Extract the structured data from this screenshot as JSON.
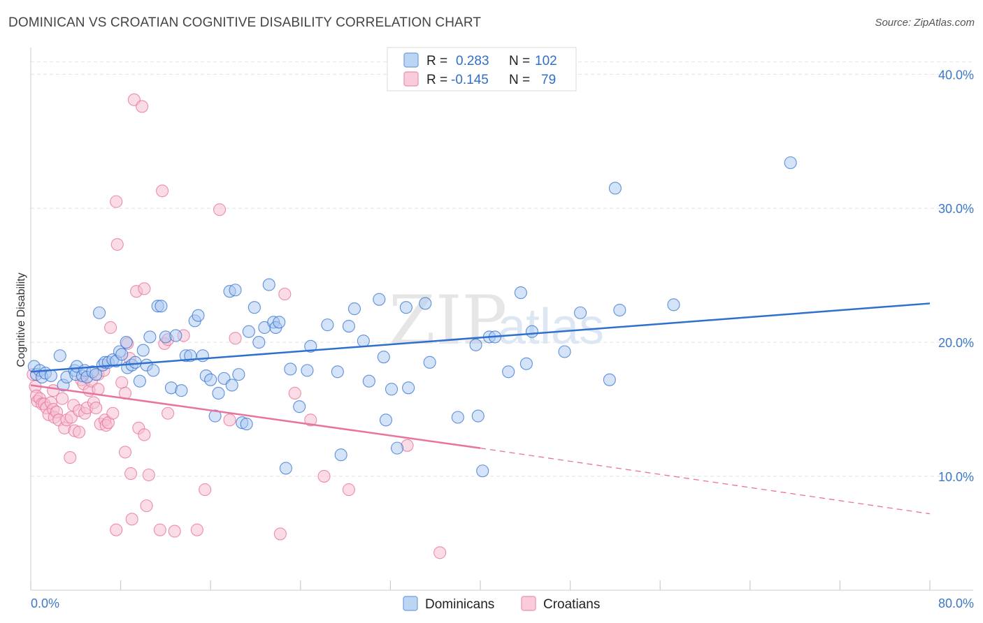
{
  "title": "DOMINICAN VS CROATIAN COGNITIVE DISABILITY CORRELATION CHART",
  "source": "Source: ZipAtlas.com",
  "watermark": {
    "zip": "ZIP",
    "atlas": "atlas"
  },
  "legend": {
    "dominicans": {
      "r_label": "R =",
      "r_value": "0.283",
      "n_label": "N =",
      "n_value": "102"
    },
    "croatians": {
      "r_label": "R =",
      "r_value": "-0.145",
      "n_label": "N =",
      "n_value": "79"
    }
  },
  "colors": {
    "blue": "#2f6fd0",
    "blue_fill": "#a9c8ef",
    "pink": "#e8739c",
    "pink_fill": "#f6bfd2",
    "grid": "#e2e2e2",
    "axis_label": "#3b78c8"
  },
  "chart_data": {
    "type": "scatter",
    "title": "DOMINICAN VS CROATIAN COGNITIVE DISABILITY CORRELATION CHART",
    "xlabel": "",
    "ylabel": "Cognitive Disability",
    "xlim": [
      0,
      80
    ],
    "ylim": [
      1.5,
      42
    ],
    "x_tick_labels": [
      "0.0%",
      "80.0%"
    ],
    "y_ticks": [
      10,
      20,
      30,
      40
    ],
    "y_tick_labels": [
      "10.0%",
      "20.0%",
      "30.0%",
      "40.0%"
    ],
    "grid": true,
    "legend_position": "top-center",
    "series": [
      {
        "name": "Dominicans",
        "trend": {
          "x": [
            0,
            80
          ],
          "y": [
            17.8,
            22.9
          ],
          "style": "solid"
        },
        "points": [
          [
            0.3,
            18.2
          ],
          [
            0.5,
            17.6
          ],
          [
            0.8,
            17.9
          ],
          [
            1.0,
            17.4
          ],
          [
            1.3,
            17.7
          ],
          [
            1.8,
            17.5
          ],
          [
            2.6,
            19.0
          ],
          [
            2.9,
            16.8
          ],
          [
            3.2,
            17.4
          ],
          [
            3.9,
            17.9
          ],
          [
            4.0,
            17.6
          ],
          [
            4.1,
            18.2
          ],
          [
            4.6,
            17.5
          ],
          [
            4.8,
            17.9
          ],
          [
            5.0,
            17.4
          ],
          [
            5.5,
            17.8
          ],
          [
            5.8,
            17.6
          ],
          [
            6.1,
            22.2
          ],
          [
            6.4,
            18.3
          ],
          [
            6.6,
            18.5
          ],
          [
            6.9,
            18.5
          ],
          [
            7.3,
            18.7
          ],
          [
            7.6,
            18.6
          ],
          [
            7.9,
            19.3
          ],
          [
            8.1,
            19.1
          ],
          [
            8.5,
            20.0
          ],
          [
            8.6,
            18.1
          ],
          [
            9.0,
            18.3
          ],
          [
            9.3,
            18.5
          ],
          [
            9.7,
            17.1
          ],
          [
            10.0,
            19.4
          ],
          [
            10.3,
            18.3
          ],
          [
            10.6,
            20.4
          ],
          [
            10.9,
            17.9
          ],
          [
            11.3,
            22.7
          ],
          [
            11.6,
            22.7
          ],
          [
            12.0,
            20.4
          ],
          [
            12.5,
            16.6
          ],
          [
            12.9,
            20.5
          ],
          [
            13.4,
            16.4
          ],
          [
            13.8,
            19.0
          ],
          [
            14.2,
            19.0
          ],
          [
            14.6,
            21.6
          ],
          [
            14.9,
            22.0
          ],
          [
            15.3,
            19.0
          ],
          [
            15.6,
            17.5
          ],
          [
            16.0,
            17.2
          ],
          [
            16.4,
            14.5
          ],
          [
            16.7,
            16.2
          ],
          [
            17.2,
            17.3
          ],
          [
            17.7,
            23.8
          ],
          [
            18.2,
            23.9
          ],
          [
            17.9,
            16.8
          ],
          [
            18.5,
            17.6
          ],
          [
            18.8,
            14.0
          ],
          [
            19.2,
            13.9
          ],
          [
            19.4,
            20.8
          ],
          [
            19.9,
            22.6
          ],
          [
            20.3,
            20.0
          ],
          [
            20.8,
            21.1
          ],
          [
            21.2,
            24.3
          ],
          [
            21.6,
            21.5
          ],
          [
            21.8,
            21.1
          ],
          [
            22.1,
            21.5
          ],
          [
            22.7,
            10.6
          ],
          [
            23.1,
            18.0
          ],
          [
            23.9,
            15.2
          ],
          [
            24.6,
            17.9
          ],
          [
            24.9,
            19.7
          ],
          [
            26.4,
            21.3
          ],
          [
            27.3,
            17.8
          ],
          [
            27.6,
            11.6
          ],
          [
            28.3,
            21.2
          ],
          [
            28.8,
            22.5
          ],
          [
            29.6,
            20.1
          ],
          [
            30.1,
            17.1
          ],
          [
            31.0,
            23.2
          ],
          [
            31.4,
            18.9
          ],
          [
            31.6,
            14.2
          ],
          [
            32.1,
            16.5
          ],
          [
            32.6,
            12.1
          ],
          [
            33.6,
            16.6
          ],
          [
            33.4,
            22.6
          ],
          [
            35.1,
            22.9
          ],
          [
            35.5,
            18.5
          ],
          [
            38.0,
            14.4
          ],
          [
            39.6,
            19.8
          ],
          [
            39.8,
            14.5
          ],
          [
            40.2,
            10.4
          ],
          [
            40.8,
            20.4
          ],
          [
            41.3,
            20.4
          ],
          [
            42.5,
            17.8
          ],
          [
            43.6,
            23.7
          ],
          [
            44.1,
            18.4
          ],
          [
            44.6,
            20.8
          ],
          [
            47.5,
            19.3
          ],
          [
            48.9,
            22.2
          ],
          [
            51.5,
            17.2
          ],
          [
            52.0,
            31.5
          ],
          [
            52.4,
            22.4
          ],
          [
            57.2,
            22.8
          ],
          [
            67.6,
            33.4
          ]
        ]
      },
      {
        "name": "Croatians",
        "trend": {
          "x": [
            0,
            40
          ],
          "y": [
            16.8,
            12.1
          ],
          "dashed_to": [
            80,
            7.2
          ]
        },
        "points": [
          [
            0.2,
            17.6
          ],
          [
            0.4,
            16.7
          ],
          [
            0.5,
            16.0
          ],
          [
            0.6,
            15.6
          ],
          [
            0.8,
            15.8
          ],
          [
            1.0,
            15.4
          ],
          [
            1.2,
            15.4
          ],
          [
            1.4,
            15.1
          ],
          [
            1.6,
            14.6
          ],
          [
            1.8,
            15.5
          ],
          [
            2.0,
            15.0
          ],
          [
            2.1,
            14.4
          ],
          [
            2.3,
            14.8
          ],
          [
            2.5,
            14.2
          ],
          [
            2.8,
            15.8
          ],
          [
            3.0,
            13.6
          ],
          [
            3.2,
            14.2
          ],
          [
            3.5,
            11.4
          ],
          [
            3.6,
            14.4
          ],
          [
            3.8,
            15.3
          ],
          [
            3.9,
            13.4
          ],
          [
            4.3,
            14.9
          ],
          [
            4.5,
            17.2
          ],
          [
            4.7,
            16.9
          ],
          [
            4.8,
            14.7
          ],
          [
            5.0,
            15.1
          ],
          [
            5.2,
            16.4
          ],
          [
            5.4,
            17.1
          ],
          [
            5.6,
            15.5
          ],
          [
            5.8,
            15.1
          ],
          [
            6.0,
            17.6
          ],
          [
            6.2,
            13.9
          ],
          [
            6.5,
            17.9
          ],
          [
            6.6,
            14.2
          ],
          [
            6.7,
            13.8
          ],
          [
            6.9,
            14.0
          ],
          [
            7.1,
            21.1
          ],
          [
            7.3,
            14.7
          ],
          [
            7.6,
            30.5
          ],
          [
            7.7,
            27.3
          ],
          [
            8.1,
            17.0
          ],
          [
            8.4,
            11.8
          ],
          [
            8.4,
            16.2
          ],
          [
            8.6,
            19.9
          ],
          [
            8.8,
            18.8
          ],
          [
            8.9,
            10.2
          ],
          [
            9.0,
            6.8
          ],
          [
            9.2,
            38.1
          ],
          [
            9.4,
            23.8
          ],
          [
            9.6,
            13.6
          ],
          [
            9.9,
            37.6
          ],
          [
            10.1,
            24.0
          ],
          [
            10.1,
            13.1
          ],
          [
            10.3,
            7.8
          ],
          [
            10.5,
            10.1
          ],
          [
            11.5,
            6.0
          ],
          [
            11.7,
            31.3
          ],
          [
            11.9,
            19.9
          ],
          [
            12.2,
            14.7
          ],
          [
            12.2,
            20.2
          ],
          [
            12.8,
            5.9
          ],
          [
            14.8,
            6.0
          ],
          [
            15.5,
            9.0
          ],
          [
            16.8,
            29.9
          ],
          [
            17.7,
            14.2
          ],
          [
            18.2,
            20.3
          ],
          [
            22.2,
            5.7
          ],
          [
            22.6,
            23.6
          ],
          [
            23.5,
            16.2
          ],
          [
            24.9,
            14.2
          ],
          [
            26.1,
            10.0
          ],
          [
            28.3,
            9.0
          ],
          [
            33.5,
            12.3
          ],
          [
            36.4,
            4.3
          ],
          [
            7.6,
            6.0
          ],
          [
            13.6,
            20.5
          ],
          [
            6.0,
            16.5
          ],
          [
            4.3,
            13.3
          ],
          [
            2.0,
            16.4
          ]
        ]
      }
    ],
    "bottom_legend": [
      "Dominicans",
      "Croatians"
    ]
  }
}
